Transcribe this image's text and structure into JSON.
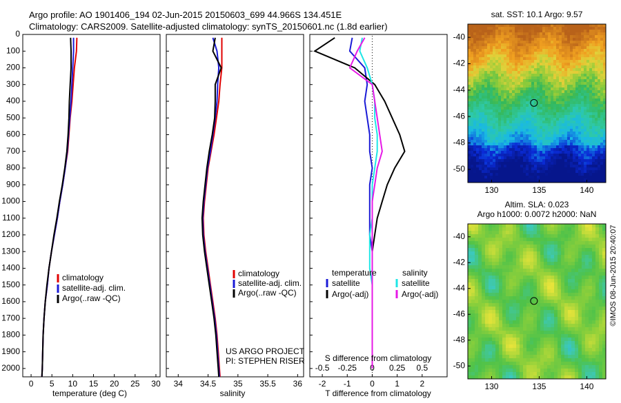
{
  "header": {
    "line1": "Argo profile: AO 1901406_194 02-Jun-2015 20150603_699 44.966S 134.451E",
    "line2": "Climatology: CARS2009. Satellite-adjusted climatology: synTS_20150601.nc (1.8d earlier)"
  },
  "colors": {
    "climatology": "#e00000",
    "satellite": "#1a1ad6",
    "argo": "#000000",
    "sat_cyan": "#1ee6e6",
    "argo_magenta": "#e619e6"
  },
  "vertical_text": "©IMOS 08-Jun-2015 20:40:07",
  "credits": {
    "line1": "US ARGO PROJECT",
    "line2": "PI: STEPHEN RISER"
  },
  "legend_profiles": [
    "climatology",
    "satellite-adj. clim.",
    "Argo(..raw -QC)"
  ],
  "legend_diff": {
    "temperature_title": "temperature",
    "salinity_title": "salinity",
    "t_items": [
      "satellite",
      "Argo(-adj)"
    ],
    "s_items": [
      "satellite",
      "Argo(-adj)"
    ]
  },
  "map_sst": {
    "title": "sat. SST: 10.1  Argo: 9.57"
  },
  "map_sla": {
    "title1": "Altim. SLA: 0.023",
    "title2": "Argo h1000: 0.0072 h2000: NaN"
  },
  "chart_data": [
    {
      "type": "line",
      "title": "",
      "xlabel": "temperature (deg C)",
      "ylabel": "",
      "xlim": [
        -2,
        31
      ],
      "ylim": [
        2050,
        0
      ],
      "xticks": [
        "0",
        "5",
        "10",
        "15",
        "20",
        "25",
        "30"
      ],
      "yticks": [
        "0",
        "100",
        "200",
        "300",
        "400",
        "500",
        "600",
        "700",
        "800",
        "900",
        "1000",
        "1100",
        "1200",
        "1300",
        "1400",
        "1500",
        "1600",
        "1700",
        "1800",
        "1900",
        "2000"
      ],
      "series": [
        {
          "name": "climatology",
          "color_key": "climatology",
          "x": [
            11.0,
            10.9,
            10.4,
            10.1,
            9.8,
            9.4,
            9.1,
            8.8,
            8.2,
            7.6,
            6.9,
            6.3,
            5.6,
            4.9,
            4.3,
            3.9,
            3.4,
            3.1,
            2.9,
            2.8,
            2.7,
            2.6
          ],
          "y": [
            20,
            100,
            200,
            300,
            400,
            500,
            600,
            700,
            800,
            900,
            1000,
            1100,
            1200,
            1300,
            1400,
            1500,
            1600,
            1700,
            1800,
            1900,
            2000,
            2050
          ]
        },
        {
          "name": "satellite-adj. clim.",
          "color_key": "satellite",
          "x": [
            10.2,
            10.2,
            10.0,
            9.8,
            9.6,
            9.3,
            9.0,
            8.7,
            8.2,
            7.6,
            6.9,
            6.3,
            5.6,
            4.9,
            4.3,
            3.9,
            3.4,
            3.1,
            2.9,
            2.8,
            2.7,
            2.6
          ],
          "y": [
            20,
            100,
            200,
            300,
            400,
            500,
            600,
            700,
            800,
            900,
            1000,
            1100,
            1200,
            1300,
            1400,
            1500,
            1600,
            1700,
            1800,
            1900,
            2000,
            2050
          ]
        },
        {
          "name": "Argo(..raw -QC)",
          "color_key": "argo",
          "x": [
            9.5,
            9.6,
            9.6,
            9.4,
            9.2,
            9.1,
            8.9,
            8.6,
            8.1,
            7.5,
            6.8,
            6.2,
            5.5,
            4.9,
            4.3,
            3.8,
            3.4,
            3.1,
            2.9,
            2.8,
            2.7,
            2.6
          ],
          "y": [
            20,
            100,
            200,
            300,
            400,
            500,
            600,
            700,
            800,
            900,
            1000,
            1100,
            1200,
            1300,
            1400,
            1500,
            1600,
            1700,
            1800,
            1900,
            2000,
            2050
          ]
        }
      ]
    },
    {
      "type": "line",
      "title": "",
      "xlabel": "salinity",
      "ylabel": "",
      "xlim": [
        33.8,
        36.1
      ],
      "ylim": [
        2050,
        0
      ],
      "xticks": [
        "34",
        "34.5",
        "35",
        "35.5",
        "36"
      ],
      "series": [
        {
          "name": "climatology",
          "color_key": "climatology",
          "x": [
            34.73,
            34.73,
            34.73,
            34.7,
            34.68,
            34.64,
            34.6,
            34.55,
            34.5,
            34.47,
            34.44,
            34.42,
            34.43,
            34.46,
            34.5,
            34.54,
            34.58,
            34.62,
            34.65,
            34.67,
            34.69,
            34.7
          ],
          "y": [
            20,
            100,
            200,
            300,
            400,
            500,
            600,
            700,
            800,
            900,
            1000,
            1100,
            1200,
            1300,
            1400,
            1500,
            1600,
            1700,
            1800,
            1900,
            2000,
            2050
          ]
        },
        {
          "name": "satellite-adj. clim.",
          "color_key": "satellite",
          "x": [
            34.58,
            34.65,
            34.68,
            34.66,
            34.65,
            34.62,
            34.58,
            34.54,
            34.49,
            34.46,
            34.43,
            34.41,
            34.42,
            34.45,
            34.49,
            34.53,
            34.57,
            34.61,
            34.64,
            34.66,
            34.68,
            34.69
          ],
          "y": [
            20,
            100,
            200,
            300,
            400,
            500,
            600,
            700,
            800,
            900,
            1000,
            1100,
            1200,
            1300,
            1400,
            1500,
            1600,
            1700,
            1800,
            1900,
            2000,
            2050
          ]
        },
        {
          "name": "Argo(..raw -QC)",
          "color_key": "argo",
          "x": [
            34.62,
            34.58,
            34.72,
            34.62,
            34.62,
            34.61,
            34.57,
            34.52,
            34.48,
            34.45,
            34.42,
            34.4,
            34.41,
            34.44,
            34.48,
            34.52,
            34.56,
            34.6,
            34.63,
            34.65,
            34.67,
            34.68
          ],
          "y": [
            20,
            100,
            200,
            300,
            400,
            500,
            600,
            700,
            800,
            900,
            1000,
            1100,
            1200,
            1300,
            1400,
            1500,
            1600,
            1700,
            1800,
            1900,
            2000,
            2050
          ]
        }
      ]
    },
    {
      "type": "line",
      "title": "",
      "xlabel": "T difference from climatology",
      "xlabel_top": "S difference from climatology",
      "ylabel": "",
      "xlim": [
        -2.5,
        3.0
      ],
      "ylim": [
        2050,
        0
      ],
      "xticks": [
        "-2",
        "-1",
        "0",
        "1",
        "2"
      ],
      "xticks_top": [
        "-0.5",
        "-0.25",
        "0",
        "0.25",
        "0.5"
      ],
      "series": [
        {
          "name": "temperature satellite",
          "color_key": "satellite",
          "x": [
            -0.8,
            -0.9,
            -0.3,
            -0.2,
            -0.3,
            -0.2,
            -0.1,
            -0.1,
            0.0,
            -0.1,
            -0.1,
            -0.1,
            -0.1,
            0.0,
            0.0,
            0.0,
            0.0,
            0.0,
            0.0,
            0.0,
            0.0
          ],
          "y": [
            20,
            100,
            200,
            300,
            400,
            500,
            600,
            700,
            800,
            900,
            1000,
            1100,
            1200,
            1300,
            1400,
            1500,
            1600,
            1700,
            1800,
            1900,
            2000
          ]
        },
        {
          "name": "temperature Argo(-adj)",
          "color_key": "argo",
          "x": [
            -1.5,
            -2.3,
            -0.7,
            0.1,
            0.5,
            0.8,
            1.1,
            1.3,
            0.9,
            0.6,
            0.4,
            0.2,
            0.1,
            0.0,
            0.0,
            0.0,
            0.0,
            0.0,
            0.0,
            0.0,
            0.0
          ],
          "y": [
            20,
            100,
            200,
            300,
            400,
            500,
            600,
            700,
            800,
            900,
            1000,
            1100,
            1200,
            1300,
            1400,
            1500,
            1600,
            1700,
            1800,
            1900,
            2000
          ]
        },
        {
          "name": "salinity satellite",
          "color_key": "sat_cyan",
          "x": [
            -0.4,
            -0.5,
            -0.2,
            0.0,
            0.1,
            0.1,
            0.2,
            0.2,
            0.1,
            0.0,
            0.0,
            0.0,
            -0.1,
            -0.1,
            -0.1,
            0.0,
            0.0,
            0.0,
            0.0,
            0.0,
            0.0
          ],
          "y": [
            20,
            100,
            200,
            300,
            400,
            500,
            600,
            700,
            800,
            900,
            1000,
            1100,
            1200,
            1300,
            1400,
            1500,
            1600,
            1700,
            1800,
            1900,
            2000
          ]
        },
        {
          "name": "salinity Argo(-adj)",
          "color_key": "argo_magenta",
          "x": [
            -0.3,
            -0.6,
            -0.9,
            0.0,
            0.1,
            0.2,
            0.3,
            0.4,
            0.2,
            0.1,
            0.0,
            0.0,
            0.0,
            0.0,
            0.0,
            0.0,
            0.0,
            0.0,
            0.0,
            0.0,
            0.0
          ],
          "y": [
            20,
            100,
            200,
            300,
            400,
            500,
            600,
            700,
            800,
            900,
            1000,
            1100,
            1200,
            1300,
            1400,
            1500,
            1600,
            1700,
            1800,
            1900,
            2000
          ]
        }
      ]
    },
    {
      "type": "heatmap",
      "title": "sat. SST: 10.1  Argo: 9.57",
      "xlim": [
        127.5,
        142
      ],
      "ylim": [
        -51,
        -39
      ],
      "xticks": [
        "130",
        "135",
        "140"
      ],
      "yticks": [
        "-40",
        "-42",
        "-44",
        "-46",
        "-48",
        "-50"
      ],
      "marker": {
        "lon": 134.451,
        "lat": -44.966
      }
    },
    {
      "type": "heatmap",
      "title": "Altim. SLA: 0.023",
      "xlim": [
        127.5,
        142
      ],
      "ylim": [
        -51,
        -39
      ],
      "xticks": [
        "130",
        "135",
        "140"
      ],
      "yticks": [
        "-40",
        "-42",
        "-44",
        "-46",
        "-48",
        "-50"
      ],
      "marker": {
        "lon": 134.451,
        "lat": -44.966
      }
    }
  ]
}
